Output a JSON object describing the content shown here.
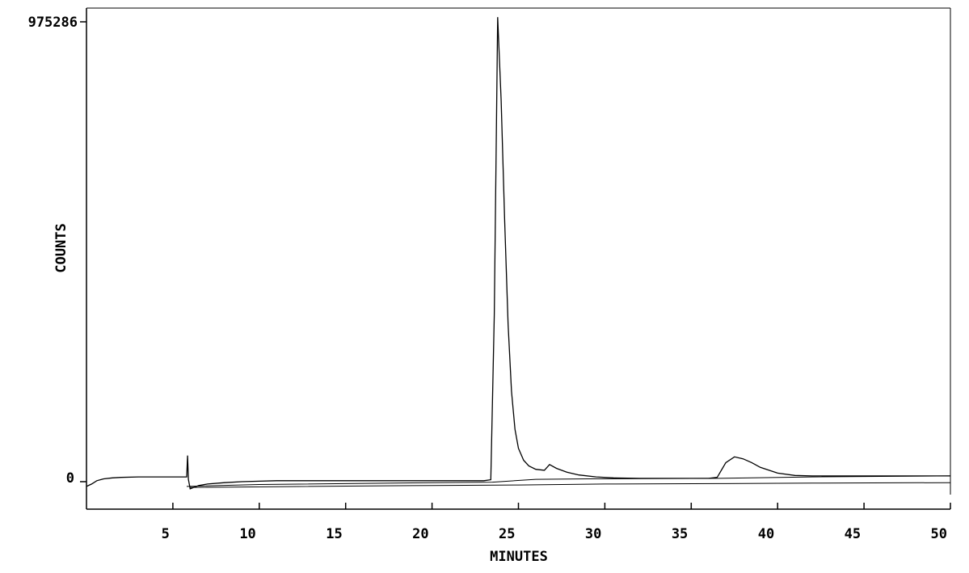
{
  "chart_data": {
    "type": "line",
    "xlabel": "MINUTES",
    "ylabel": "COUNTS",
    "y_max_label": "975286",
    "y_zero_label": "0",
    "xlim": [
      0,
      50
    ],
    "ylim": [
      0,
      975286
    ],
    "grid": false,
    "x_ticks": [
      5,
      10,
      15,
      20,
      25,
      30,
      35,
      40,
      45,
      50
    ],
    "x_tick_labels": [
      "5",
      "10",
      "15",
      "20",
      "25",
      "30",
      "35",
      "40",
      "45",
      "50"
    ],
    "series": [
      {
        "x": [
          0,
          0.3,
          0.6,
          1.0,
          1.5,
          2.0,
          3.0,
          4.0,
          5.0,
          5.8,
          5.85,
          5.9,
          6.0,
          6.2,
          6.5,
          7.0,
          8.0,
          9.0,
          10.0,
          11.0,
          12.0,
          14.0,
          16.0,
          18.0,
          20.0,
          22.0,
          23.0,
          23.4,
          23.6,
          23.8,
          24.0,
          24.2,
          24.4,
          24.6,
          24.8,
          25.0,
          25.3,
          25.6,
          26.0,
          26.5,
          26.8,
          27.2,
          27.8,
          28.5,
          29.5,
          30.5,
          32.0,
          34.0,
          36.0,
          36.5,
          37.0,
          37.5,
          38.0,
          38.5,
          39.0,
          40.0,
          41.0,
          42.0,
          44.0,
          46.0,
          48.0,
          50.0
        ],
        "y": [
          -10000,
          -5000,
          2000,
          6000,
          8000,
          9000,
          10000,
          10000,
          10000,
          10000,
          55000,
          5000,
          -15000,
          -12000,
          -8000,
          -5000,
          -2000,
          0,
          1000,
          2000,
          2000,
          2000,
          2000,
          2000,
          2000,
          2000,
          2000,
          4000,
          350000,
          975000,
          800000,
          550000,
          330000,
          190000,
          110000,
          70000,
          45000,
          33000,
          26000,
          24000,
          36000,
          28000,
          20000,
          14000,
          10000,
          8000,
          7000,
          7000,
          7000,
          9000,
          40000,
          52000,
          48000,
          40000,
          30000,
          18000,
          13000,
          12000,
          12000,
          12000,
          12000,
          12000
        ]
      }
    ],
    "baselines": [
      {
        "x": [
          5.8,
          10.0,
          20.0,
          23.5,
          26.0,
          29.0,
          36.5,
          42.0,
          50.0
        ],
        "y": [
          -10000,
          -6000,
          -2000,
          -1000,
          5000,
          6000,
          7000,
          10000,
          12000
        ]
      },
      {
        "x": [
          6.0,
          20.0,
          25.0,
          30.0,
          37.0,
          42.0,
          50.0
        ],
        "y": [
          -12000,
          -8000,
          -7000,
          -5000,
          -4000,
          -3000,
          -2000
        ]
      }
    ]
  }
}
